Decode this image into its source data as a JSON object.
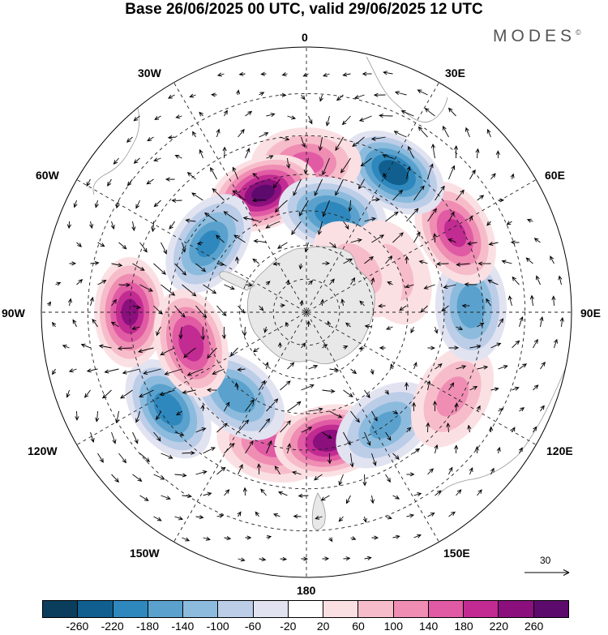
{
  "header": {
    "title": "Base 26/06/2025 00 UTC, valid 29/06/2025 12 UTC",
    "logo_text": "MODES",
    "logo_mark": "©"
  },
  "map": {
    "projection": "south-polar-stereographic",
    "longitude_labels": {
      "lon_0": "0",
      "lon_30e": "30E",
      "lon_60e": "60E",
      "lon_90e": "90E",
      "lon_120e": "120E",
      "lon_150e": "150E",
      "lon_180": "180",
      "lon_150w": "150W",
      "lon_120w": "120W",
      "lon_90w": "90W",
      "lon_60w": "60W",
      "lon_30w": "30W"
    },
    "reference_vector_label": "30",
    "land_color": "#e8e8e8",
    "anomaly_centers": [
      {
        "lon": -15,
        "lat": -50,
        "value": 140
      },
      {
        "lon": -55,
        "lat": -42,
        "value": -200
      },
      {
        "lon": -40,
        "lat": -58,
        "value": -160
      },
      {
        "lon": 10,
        "lat": -52,
        "value": 240
      },
      {
        "lon": 35,
        "lat": -50,
        "value": -140
      },
      {
        "lon": 60,
        "lat": -42,
        "value": 100
      },
      {
        "lon": 92,
        "lat": -43,
        "value": -160
      },
      {
        "lon": 118,
        "lat": -42,
        "value": 180
      },
      {
        "lon": 148,
        "lat": -43,
        "value": -240
      },
      {
        "lon": 180,
        "lat": -47,
        "value": 140
      },
      {
        "lon": -160,
        "lat": -53,
        "value": 260
      },
      {
        "lon": 165,
        "lat": -60,
        "value": -200
      },
      {
        "lon": -125,
        "lat": -55,
        "value": -180
      },
      {
        "lon": -90,
        "lat": -40,
        "value": 220
      },
      {
        "lon": -75,
        "lat": -55,
        "value": 200
      },
      {
        "lon": 115,
        "lat": -62,
        "value": 60
      },
      {
        "lon": 130,
        "lat": -70,
        "value": 60
      }
    ]
  },
  "colorbar": {
    "colors": [
      "#0b3d5c",
      "#105f8e",
      "#2f88bd",
      "#5aa2cd",
      "#8cbbdd",
      "#bccde8",
      "#e2e3f1",
      "#ffffff",
      "#fbe0e3",
      "#f7bcca",
      "#ef8db3",
      "#e05ba4",
      "#c12b92",
      "#8c0f7e",
      "#5c0a6c"
    ],
    "ticks": [
      "-260",
      "-220",
      "-180",
      "-140",
      "-100",
      "-60",
      "-20",
      "20",
      "60",
      "100",
      "140",
      "180",
      "220",
      "260"
    ]
  }
}
